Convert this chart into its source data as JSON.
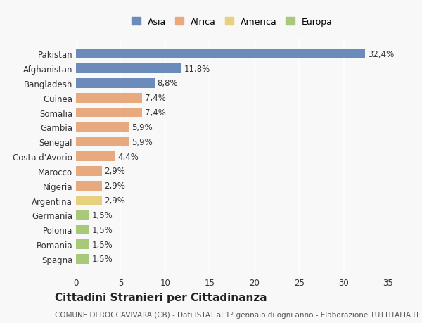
{
  "countries": [
    "Pakistan",
    "Afghanistan",
    "Bangladesh",
    "Guinea",
    "Somalia",
    "Gambia",
    "Senegal",
    "Costa d'Avorio",
    "Marocco",
    "Nigeria",
    "Argentina",
    "Germania",
    "Polonia",
    "Romania",
    "Spagna"
  ],
  "values": [
    32.4,
    11.8,
    8.8,
    7.4,
    7.4,
    5.9,
    5.9,
    4.4,
    2.9,
    2.9,
    2.9,
    1.5,
    1.5,
    1.5,
    1.5
  ],
  "labels": [
    "32,4%",
    "11,8%",
    "8,8%",
    "7,4%",
    "7,4%",
    "5,9%",
    "5,9%",
    "4,4%",
    "2,9%",
    "2,9%",
    "2,9%",
    "1,5%",
    "1,5%",
    "1,5%",
    "1,5%"
  ],
  "categories": [
    "Asia",
    "Africa",
    "America",
    "Europa"
  ],
  "continent": [
    "Asia",
    "Asia",
    "Asia",
    "Africa",
    "Africa",
    "Africa",
    "Africa",
    "Africa",
    "Africa",
    "Africa",
    "America",
    "Europa",
    "Europa",
    "Europa",
    "Europa"
  ],
  "colors": {
    "Asia": "#6b8cba",
    "Africa": "#e8a97e",
    "America": "#e8d17e",
    "Europa": "#a8c87a"
  },
  "xlim": [
    0,
    35
  ],
  "xticks": [
    0,
    5,
    10,
    15,
    20,
    25,
    30,
    35
  ],
  "title": "Cittadini Stranieri per Cittadinanza",
  "subtitle": "COMUNE DI ROCCAVIVARA (CB) - Dati ISTAT al 1° gennaio di ogni anno - Elaborazione TUTTITALIA.IT",
  "background_color": "#f8f8f8",
  "grid_color": "#ffffff",
  "bar_height": 0.65,
  "label_fontsize": 8.5,
  "tick_fontsize": 8.5,
  "title_fontsize": 11,
  "subtitle_fontsize": 7.5
}
